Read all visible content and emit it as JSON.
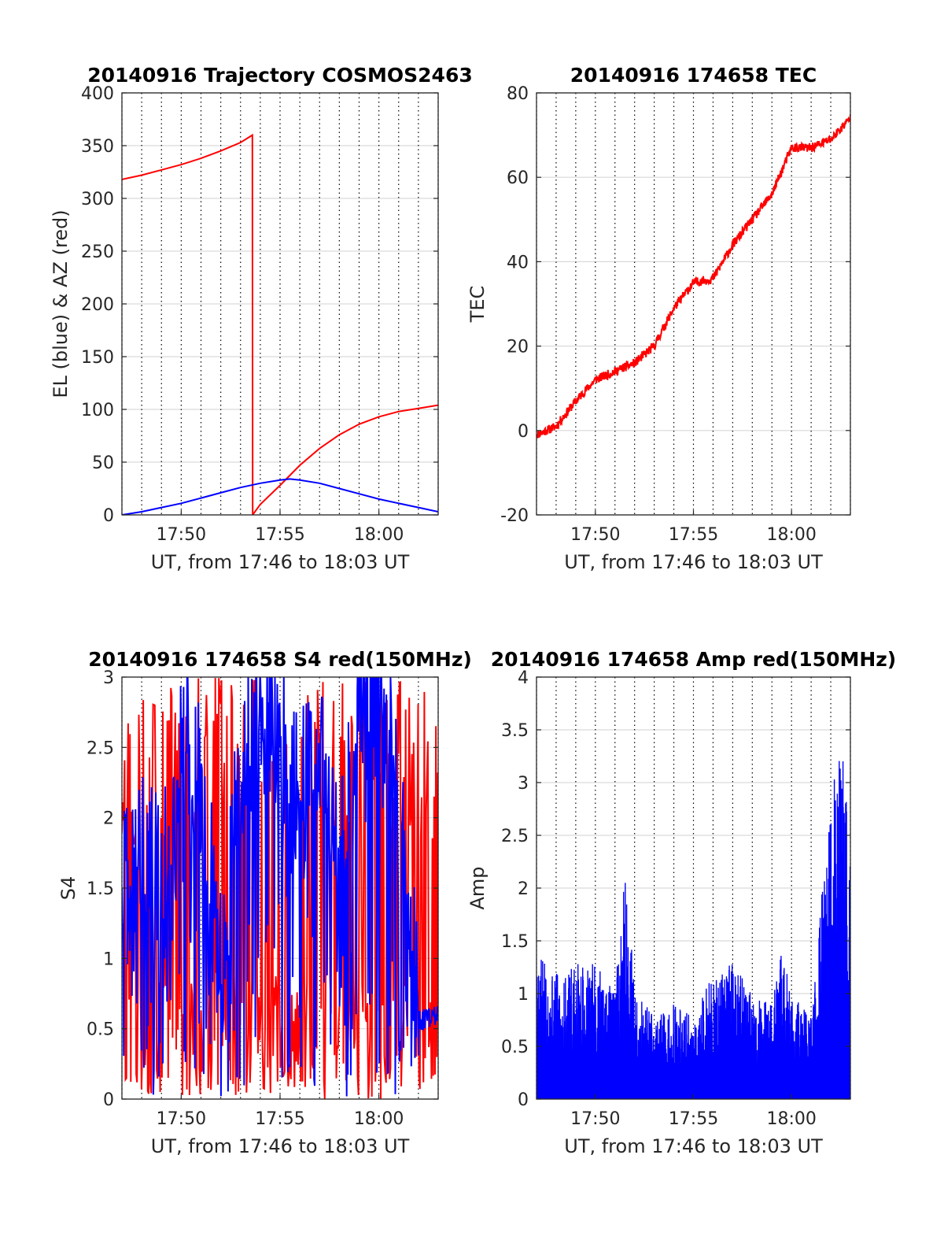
{
  "chart_data": [
    {
      "type": "line",
      "title": "20140916 Trajectory COSMOS2463",
      "xlabel": "UT, from 17:46 to 18:03 UT",
      "ylabel": "EL (blue) & AZ (red)",
      "xlim": [
        "17:47",
        "18:03"
      ],
      "ylim": [
        0,
        400
      ],
      "yticks": [
        0,
        50,
        100,
        150,
        200,
        250,
        300,
        350,
        400
      ],
      "xticks": [
        "17:50",
        "17:55",
        "18:00"
      ],
      "grid": true,
      "series": [
        {
          "color": "#ff0000",
          "x": [
            "17:47",
            "17:48",
            "17:49",
            "17:50",
            "17:51",
            "17:52",
            "17:53",
            "17:53:36",
            "17:53:37",
            "17:54",
            "17:55",
            "17:56",
            "17:57",
            "17:58",
            "17:59",
            "18:00",
            "18:01",
            "18:02",
            "18:03"
          ],
          "y": [
            318,
            322,
            327,
            332,
            338,
            345,
            353,
            360,
            0,
            10,
            28,
            47,
            63,
            76,
            86,
            93,
            98,
            101,
            104
          ]
        },
        {
          "color": "#0000ff",
          "x": [
            "17:47",
            "17:48",
            "17:49",
            "17:50",
            "17:51",
            "17:52",
            "17:53",
            "17:54",
            "17:55",
            "17:55:30",
            "17:56",
            "17:57",
            "17:58",
            "17:59",
            "18:00",
            "18:01",
            "18:02",
            "18:03"
          ],
          "y": [
            0,
            3,
            7,
            11,
            16,
            21,
            26,
            30,
            33,
            34,
            33,
            30,
            25,
            20,
            15,
            11,
            7,
            3
          ]
        }
      ]
    },
    {
      "type": "line",
      "title": "20140916 174658 TEC",
      "xlabel": "UT, from 17:46 to 18:03 UT",
      "ylabel": "TEC",
      "xlim": [
        "17:47",
        "18:03"
      ],
      "ylim": [
        -20,
        80
      ],
      "yticks": [
        -20,
        0,
        20,
        40,
        60,
        80
      ],
      "xticks": [
        "17:50",
        "17:55",
        "18:00"
      ],
      "grid": true,
      "series": [
        {
          "color": "#ff0000",
          "x": [
            "17:47",
            "17:48",
            "17:49",
            "17:50",
            "17:51",
            "17:52",
            "17:53",
            "17:54",
            "17:55",
            "17:56",
            "17:57",
            "17:58",
            "17:59",
            "18:00",
            "18:01",
            "18:02",
            "18:03"
          ],
          "y": [
            -1,
            1,
            7,
            12,
            14,
            16,
            20,
            29,
            35,
            36,
            44,
            50,
            56,
            67,
            67,
            69,
            74
          ]
        }
      ]
    },
    {
      "type": "line",
      "title": "20140916 174658 S4 red(150MHz)",
      "xlabel": "UT, from 17:46 to 18:03 UT",
      "ylabel": "S4",
      "xlim": [
        "17:47",
        "18:03"
      ],
      "ylim": [
        0,
        3
      ],
      "yticks": [
        0,
        0.5,
        1,
        1.5,
        2,
        2.5,
        3
      ],
      "xticks": [
        "17:50",
        "17:55",
        "18:00"
      ],
      "grid": true,
      "series": [
        {
          "color": "#ff0000",
          "note": "fluctuates rapidly between 0 and 3 throughout",
          "x": [
            "17:47",
            "18:03"
          ],
          "y_range": [
            0,
            3
          ]
        },
        {
          "color": "#0000ff",
          "x": [
            "17:47",
            "17:48",
            "17:49",
            "17:50",
            "17:51",
            "17:52",
            "17:53",
            "17:54",
            "17:55",
            "17:56",
            "17:57",
            "17:58",
            "17:59",
            "18:00",
            "18:01",
            "18:02",
            "18:03"
          ],
          "y": [
            1.5,
            1.7,
            1.6,
            2.6,
            2.2,
            0.9,
            2.4,
            2.7,
            2.6,
            2.2,
            2.5,
            1.6,
            2.8,
            2.9,
            2.4,
            0.55,
            0.6
          ]
        }
      ]
    },
    {
      "type": "line",
      "title": "20140916 174658 Amp red(150MHz)",
      "xlabel": "UT, from 17:46 to 18:03 UT",
      "ylabel": "Amp",
      "xlim": [
        "17:47",
        "18:03"
      ],
      "ylim": [
        0,
        4
      ],
      "yticks": [
        0,
        0.5,
        1,
        1.5,
        2,
        2.5,
        3,
        3.5,
        4
      ],
      "xticks": [
        "17:50",
        "17:55",
        "18:00"
      ],
      "grid": true,
      "series": [
        {
          "color": "#0000ff",
          "note": "dense noisy signal from 0 up to the listed envelope",
          "x": [
            "17:47",
            "17:48",
            "17:49",
            "17:50",
            "17:51",
            "17:51:30",
            "17:52",
            "17:53",
            "17:54",
            "17:55",
            "17:56",
            "17:57",
            "17:58",
            "17:59",
            "17:59:30",
            "18:00",
            "18:01",
            "18:02",
            "18:02:30",
            "18:03"
          ],
          "y": [
            1.4,
            1.2,
            1.3,
            1.3,
            1.0,
            2.4,
            1.0,
            0.8,
            0.9,
            0.8,
            1.2,
            1.3,
            1.0,
            0.9,
            1.4,
            1.0,
            0.8,
            2.9,
            3.4,
            2.7
          ]
        }
      ]
    }
  ]
}
